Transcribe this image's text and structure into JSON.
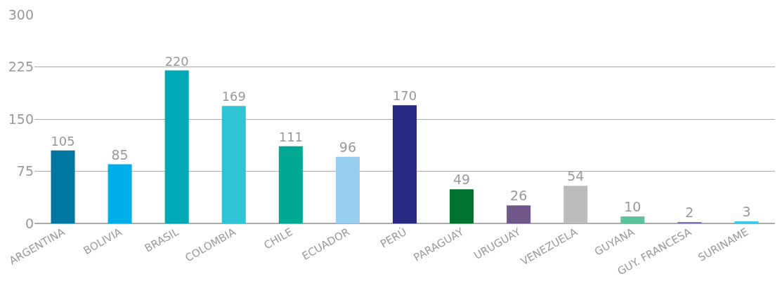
{
  "chart_data": {
    "type": "bar",
    "categories": [
      "ARGENTINA",
      "BOLIVIA",
      "BRASIL",
      "COLOMBIA",
      "CHILE",
      "ECUADOR",
      "PERÚ",
      "PARAGUAY",
      "URUGUAY",
      "VENEZUELA",
      "GUYANA",
      "GUY. FRANCESA",
      "SURINAME"
    ],
    "values": [
      105,
      85,
      220,
      169,
      111,
      96,
      170,
      49,
      26,
      54,
      10,
      2,
      3
    ],
    "colors": [
      "#0077a0",
      "#00aee8",
      "#00a9b5",
      "#2ec4d6",
      "#00a994",
      "#99cfee",
      "#2a2882",
      "#00722f",
      "#6f578a",
      "#bcbcbe",
      "#5bc29a",
      "#7b6fb8",
      "#3dc7e8"
    ],
    "ylim": [
      0,
      300
    ],
    "yticks": [
      0,
      75,
      150,
      225,
      300
    ],
    "grid": "y",
    "data_labels": true
  }
}
